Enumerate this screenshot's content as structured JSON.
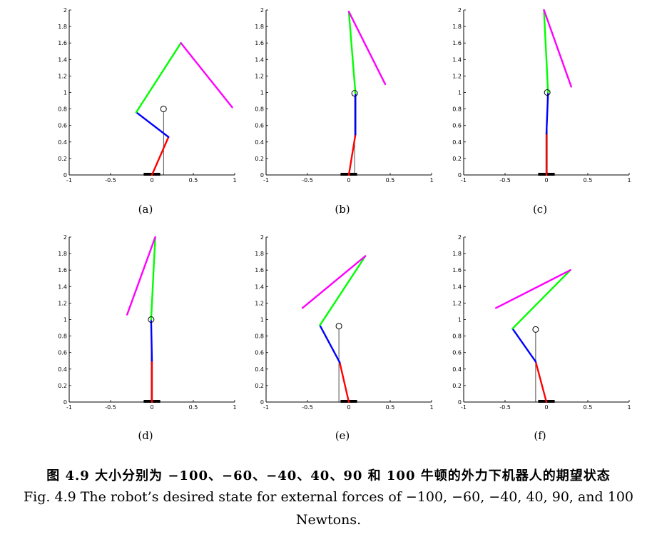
{
  "figure": {
    "caption_cn": "图 4.9 大小分别为 −100、−60、−40、40、90 和 100 牛顿的外力下机器人的期望状态",
    "caption_en_line1": "Fig. 4.9 The robot’s desired state for external forces of −100, −60, −40, 40, 90, and 100",
    "caption_en_line2": "Newtons."
  },
  "colors": {
    "segment1": "#ff0000",
    "segment2": "#0000ff",
    "segment3": "#00ff00",
    "segment4": "#ff00ff",
    "foot": "#000000",
    "com_line": "#000000"
  },
  "chart_data": [
    {
      "label": "(a)",
      "type": "line",
      "xlim": [
        -1,
        1
      ],
      "ylim": [
        0,
        2
      ],
      "xticks": [
        "-1",
        "-0.5",
        "0",
        "0.5",
        "1"
      ],
      "yticks": [
        "0",
        "0.2",
        "0.4",
        "0.6",
        "0.8",
        "1",
        "1.2",
        "1.4",
        "1.6",
        "1.8",
        "2"
      ],
      "joints": [
        [
          0.0,
          0.0
        ],
        [
          0.2,
          0.46
        ],
        [
          -0.19,
          0.76
        ],
        [
          0.35,
          1.6
        ],
        [
          0.97,
          0.82
        ]
      ],
      "com": [
        0.14,
        0.8
      ],
      "foot": [
        -0.1,
        0.1
      ]
    },
    {
      "label": "(b)",
      "type": "line",
      "xlim": [
        -1,
        1
      ],
      "ylim": [
        0,
        2
      ],
      "xticks": [
        "-1",
        "-0.5",
        "0",
        "0.5",
        "1"
      ],
      "yticks": [
        "0",
        "0.2",
        "0.4",
        "0.6",
        "0.8",
        "1",
        "1.2",
        "1.4",
        "1.6",
        "1.8",
        "2"
      ],
      "joints": [
        [
          0.0,
          0.0
        ],
        [
          0.08,
          0.49
        ],
        [
          0.08,
          0.99
        ],
        [
          0.0,
          1.98
        ],
        [
          0.44,
          1.1
        ]
      ],
      "com": [
        0.07,
        0.99
      ],
      "foot": [
        -0.1,
        0.1
      ]
    },
    {
      "label": "(c)",
      "type": "line",
      "xlim": [
        -1,
        1
      ],
      "ylim": [
        0,
        2
      ],
      "xticks": [
        "-1",
        "-0.5",
        "0",
        "0.5",
        "1"
      ],
      "yticks": [
        "0",
        "0.2",
        "0.4",
        "0.6",
        "0.8",
        "1",
        "1.2",
        "1.4",
        "1.6",
        "1.8",
        "2"
      ],
      "joints": [
        [
          0.0,
          0.0
        ],
        [
          0.0,
          0.5
        ],
        [
          0.02,
          1.0
        ],
        [
          -0.03,
          2.0
        ],
        [
          0.3,
          1.07
        ]
      ],
      "com": [
        0.01,
        1.0
      ],
      "foot": [
        -0.1,
        0.1
      ]
    },
    {
      "label": "(d)",
      "type": "line",
      "xlim": [
        -1,
        1
      ],
      "ylim": [
        0,
        2
      ],
      "xticks": [
        "-1",
        "-0.5",
        "0",
        "0.5",
        "1"
      ],
      "yticks": [
        "0",
        "0.2",
        "0.4",
        "0.6",
        "0.8",
        "1",
        "1.2",
        "1.4",
        "1.6",
        "1.8",
        "2"
      ],
      "joints": [
        [
          0.0,
          0.0
        ],
        [
          0.0,
          0.5
        ],
        [
          -0.01,
          1.0
        ],
        [
          0.04,
          2.0
        ],
        [
          -0.3,
          1.06
        ]
      ],
      "com": [
        -0.01,
        1.0
      ],
      "foot": [
        -0.1,
        0.1
      ]
    },
    {
      "label": "(e)",
      "type": "line",
      "xlim": [
        -1,
        1
      ],
      "ylim": [
        0,
        2
      ],
      "xticks": [
        "-1",
        "-0.5",
        "0",
        "0.5",
        "1"
      ],
      "yticks": [
        "0",
        "0.2",
        "0.4",
        "0.6",
        "0.8",
        "1",
        "1.2",
        "1.4",
        "1.6",
        "1.8",
        "2"
      ],
      "joints": [
        [
          0.0,
          0.0
        ],
        [
          -0.11,
          0.48
        ],
        [
          -0.35,
          0.93
        ],
        [
          0.2,
          1.77
        ],
        [
          -0.56,
          1.14
        ]
      ],
      "com": [
        -0.12,
        0.92
      ],
      "foot": [
        -0.1,
        0.1
      ]
    },
    {
      "label": "(f)",
      "type": "line",
      "xlim": [
        -1,
        1
      ],
      "ylim": [
        0,
        2
      ],
      "xticks": [
        "-1",
        "-0.5",
        "0",
        "0.5",
        "1"
      ],
      "yticks": [
        "0",
        "0.2",
        "0.4",
        "0.6",
        "0.8",
        "1",
        "1.2",
        "1.4",
        "1.6",
        "1.8",
        "2"
      ],
      "joints": [
        [
          0.0,
          0.0
        ],
        [
          -0.13,
          0.49
        ],
        [
          -0.41,
          0.89
        ],
        [
          0.29,
          1.6
        ],
        [
          -0.61,
          1.14
        ]
      ],
      "com": [
        -0.13,
        0.88
      ],
      "foot": [
        -0.1,
        0.1
      ]
    }
  ]
}
